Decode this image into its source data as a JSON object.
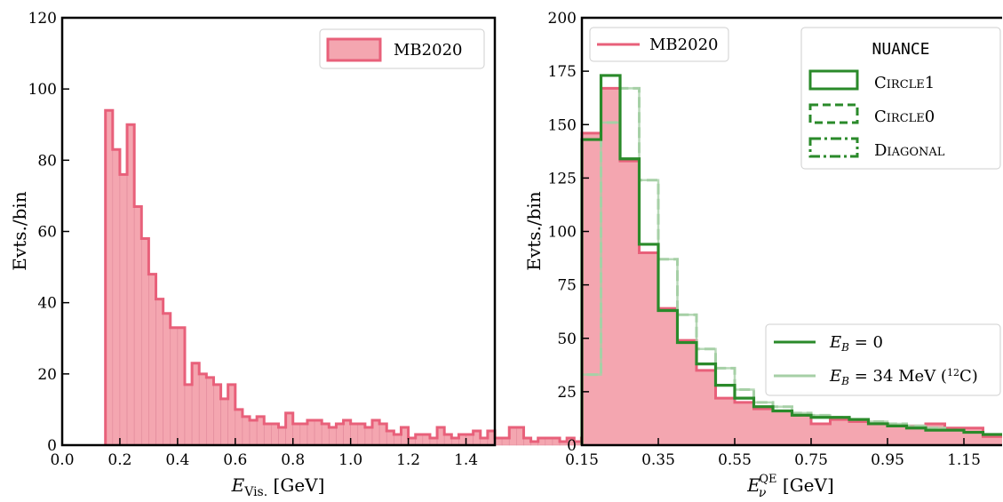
{
  "colors": {
    "mb_fill": "#f4a6b0",
    "mb_line": "#e8607a",
    "green": "#2a8a2a",
    "green_light": "#a6cfa6"
  },
  "chart_data": [
    {
      "type": "bar",
      "title": "",
      "xlabel_main": "E",
      "xlabel_sub": "Vis.",
      "xlabel_unit": " [GeV]",
      "ylabel": "Evts./bin",
      "xlim": [
        0.0,
        1.5
      ],
      "ylim": [
        0,
        120
      ],
      "xticks": [
        0.0,
        0.2,
        0.4,
        0.6,
        0.8,
        1.0,
        1.2,
        1.4
      ],
      "xtick_labels": [
        "0.0",
        "0.2",
        "0.4",
        "0.6",
        "0.8",
        "1.0",
        "1.2",
        "1.4"
      ],
      "yticks": [
        0,
        20,
        40,
        60,
        80,
        100,
        120
      ],
      "ytick_labels": [
        "0",
        "20",
        "40",
        "60",
        "80",
        "100",
        "120"
      ],
      "legend": {
        "position": "top-right",
        "entries": [
          "MB2020"
        ]
      },
      "bin_edges_start": 0.15,
      "bin_width": 0.025,
      "series": [
        {
          "name": "MB2020",
          "values": [
            94,
            83,
            76,
            90,
            67,
            58,
            48,
            41,
            37,
            33,
            33,
            17,
            23,
            20,
            19,
            17,
            13,
            17,
            10,
            8,
            7,
            8,
            6,
            6,
            5,
            9,
            6,
            6,
            7,
            7,
            6,
            5,
            6,
            7,
            6,
            6,
            5,
            7,
            6,
            4,
            3,
            5,
            2,
            3,
            3,
            2,
            5,
            3,
            2,
            3,
            3,
            4,
            2,
            4,
            2,
            2,
            5,
            5,
            2,
            1,
            2,
            2,
            2,
            1,
            2,
            1,
            2,
            2,
            2,
            1,
            2,
            1,
            2,
            2,
            1,
            2,
            1,
            2,
            1,
            1
          ]
        }
      ]
    },
    {
      "type": "bar",
      "title": "",
      "xlabel_main": "E",
      "xlabel_sub": "ν",
      "xlabel_sup": "QE",
      "xlabel_unit": " [GeV]",
      "ylabel": "Evts./bin",
      "xlim": [
        0.15,
        1.25
      ],
      "ylim": [
        0,
        200
      ],
      "xticks": [
        0.15,
        0.35,
        0.55,
        0.75,
        0.95,
        1.15
      ],
      "xtick_labels": [
        "0.15",
        "0.35",
        "0.55",
        "0.75",
        "0.95",
        "1.15"
      ],
      "yticks": [
        0,
        25,
        50,
        75,
        100,
        125,
        150,
        175,
        200
      ],
      "ytick_labels": [
        "0",
        "25",
        "50",
        "75",
        "100",
        "125",
        "150",
        "175",
        "200"
      ],
      "legend_mb": {
        "position": "top-left",
        "entries": [
          "MB2020"
        ]
      },
      "legend_nuance": {
        "position": "top-right",
        "title": "NUANCE",
        "entries": [
          "Circle1",
          "Circle0",
          "Diagonal"
        ]
      },
      "legend_eb": {
        "position": "lower-right",
        "entries": [
          {
            "main": "E",
            "sub": "B",
            "rest": " = 0"
          },
          {
            "main": "E",
            "sub": "B",
            "rest": " = 34 MeV (",
            "sup": "12",
            "tail": "C)"
          }
        ]
      },
      "bin_edges": [
        0.15,
        0.2,
        0.25,
        0.3,
        0.35,
        0.4,
        0.45,
        0.5,
        0.55,
        0.6,
        0.65,
        0.7,
        0.75,
        0.8,
        0.85,
        0.9,
        0.95,
        1.0,
        1.05,
        1.1,
        1.15,
        1.2,
        1.25
      ],
      "series": [
        {
          "name": "MB2020",
          "values": [
            146,
            167,
            133,
            90,
            64,
            49,
            35,
            22,
            20,
            17,
            16,
            14,
            10,
            12,
            11,
            10,
            9,
            9,
            10,
            8,
            8,
            4
          ]
        },
        {
          "name": "Circle1",
          "values": [
            143,
            173,
            134,
            94,
            63,
            48,
            38,
            28,
            22,
            18,
            16,
            14,
            13,
            13,
            12,
            10,
            9,
            8,
            7,
            7,
            6,
            5
          ]
        },
        {
          "name": "Circle0",
          "values": [
            143,
            173,
            134,
            94,
            63,
            48,
            38,
            28,
            22,
            18,
            16,
            14,
            13,
            13,
            12,
            10,
            9,
            8,
            7,
            7,
            6,
            5
          ]
        },
        {
          "name": "Diagonal",
          "values": [
            143,
            173,
            134,
            94,
            63,
            48,
            38,
            28,
            22,
            18,
            16,
            14,
            13,
            13,
            12,
            10,
            9,
            8,
            7,
            7,
            6,
            5
          ]
        },
        {
          "name": "Circle1 EB=34",
          "values": [
            33,
            151,
            167,
            124,
            87,
            61,
            45,
            36,
            26,
            20,
            18,
            15,
            14,
            13,
            12,
            11,
            10,
            9,
            8,
            7,
            6,
            5
          ]
        }
      ]
    }
  ]
}
